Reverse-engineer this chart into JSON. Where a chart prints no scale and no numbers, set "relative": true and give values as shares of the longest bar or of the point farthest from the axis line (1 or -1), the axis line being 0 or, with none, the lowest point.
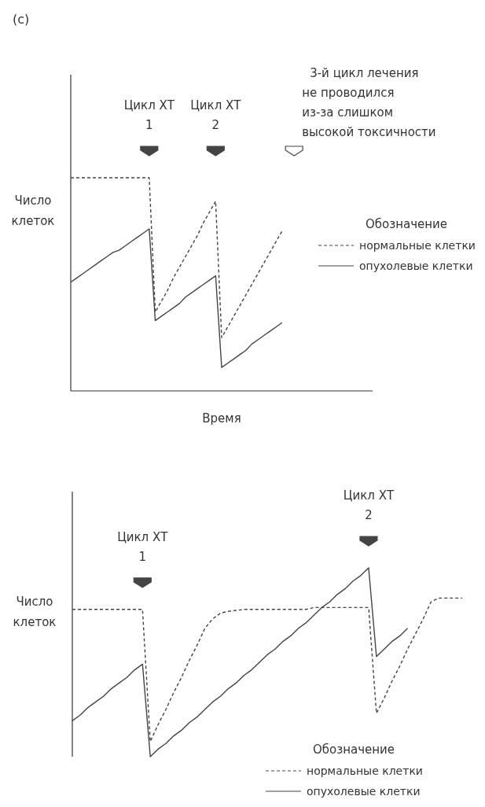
{
  "chart_data": [
    {
      "type": "line",
      "title": "(c)",
      "xlabel": "Время",
      "ylabel": "Число клеток",
      "legend_title": "Обозначение",
      "legend": "right",
      "relative": true,
      "categories": [
        null,
        null,
        null,
        null,
        null,
        null,
        null,
        null,
        null,
        null,
        null,
        null,
        null,
        null,
        null,
        null,
        null,
        null,
        null,
        null,
        null,
        null,
        null,
        null,
        null,
        null,
        null,
        null,
        null,
        null,
        null,
        null,
        null,
        null,
        null,
        null,
        null,
        null,
        null,
        null,
        null,
        null,
        null,
        null,
        null,
        null,
        null,
        null,
        null,
        null,
        null
      ],
      "annotations": [
        "Цикл ХТ\n1",
        "Цикл ХТ\n2",
        "3-й цикл лечения\nне проводился\nиз-за слишком\nвысокой токсичности"
      ],
      "series": [
        {
          "name": "нормальные клетки",
          "color": "#444444",
          "line_style": "dashed",
          "values": [
            1,
            1,
            1,
            1,
            1,
            1,
            1,
            1,
            1,
            1,
            1,
            1,
            1,
            1,
            0.37,
            0.42,
            0.47,
            0.53,
            0.58,
            0.63,
            0.68,
            0.73,
            0.79,
            0.84,
            0.89,
            0.25,
            0.3,
            0.35,
            0.4,
            0.45,
            0.5,
            0.55,
            0.6,
            0.65,
            0.7,
            0.75,
            null,
            null,
            null,
            null,
            null,
            null,
            null,
            null,
            null,
            null,
            null,
            null,
            null,
            null,
            null
          ]
        },
        {
          "name": "опухолевые клетки",
          "color": "#444444",
          "line_style": "solid",
          "values": [
            0.51,
            0.53,
            0.55,
            0.57,
            0.59,
            0.61,
            0.63,
            0.65,
            0.66,
            0.68,
            0.7,
            0.72,
            0.74,
            0.76,
            0.33,
            0.35,
            0.37,
            0.39,
            0.41,
            0.44,
            0.46,
            0.48,
            0.5,
            0.52,
            0.54,
            0.11,
            0.13,
            0.15,
            0.17,
            0.19,
            0.22,
            0.24,
            0.26,
            0.28,
            0.3,
            0.32,
            null,
            null,
            null,
            null,
            null,
            null,
            null,
            null,
            null,
            null,
            null,
            null,
            null,
            null,
            null
          ]
        }
      ]
    },
    {
      "type": "line",
      "ylabel": "Число клеток",
      "legend_title": "Обозначение",
      "legend": "bottom right",
      "relative": true,
      "categories": [
        null,
        null,
        null,
        null,
        null,
        null,
        null,
        null,
        null,
        null,
        null,
        null,
        null,
        null,
        null,
        null,
        null,
        null,
        null,
        null,
        null,
        null,
        null,
        null,
        null,
        null,
        null,
        null,
        null,
        null,
        null,
        null,
        null,
        null,
        null,
        null,
        null,
        null,
        null,
        null,
        null,
        null,
        null,
        null,
        null,
        null,
        null,
        null,
        null,
        null,
        null
      ],
      "annotations": [
        "Цикл ХТ\n1",
        "Цикл ХТ\n2"
      ],
      "series": [
        {
          "name": "нормальные клетки",
          "color": "#444444",
          "line_style": "dashed",
          "values": [
            0.78,
            0.78,
            0.78,
            0.78,
            0.78,
            0.78,
            0.78,
            0.78,
            0.78,
            0.78,
            0.08,
            0.17,
            0.25,
            0.34,
            0.42,
            0.51,
            0.59,
            0.68,
            0.73,
            0.76,
            0.77,
            0.775,
            0.78,
            0.78,
            0.78,
            0.78,
            0.78,
            0.78,
            0.78,
            0.78,
            0.78,
            0.79,
            0.79,
            0.79,
            0.79,
            0.79,
            0.79,
            0.79,
            0.79,
            0.23,
            0.31,
            0.4,
            0.48,
            0.57,
            0.65,
            0.73,
            0.82,
            0.84,
            0.84,
            0.84,
            0.84
          ]
        },
        {
          "name": "опухолевые клетки",
          "color": "#444444",
          "line_style": "solid",
          "values": [
            0.19,
            0.22,
            0.26,
            0.29,
            0.32,
            0.36,
            0.39,
            0.42,
            0.46,
            0.49,
            0,
            0.04,
            0.07,
            0.11,
            0.14,
            0.18,
            0.21,
            0.25,
            0.29,
            0.32,
            0.36,
            0.39,
            0.43,
            0.46,
            0.5,
            0.54,
            0.57,
            0.61,
            0.64,
            0.68,
            0.71,
            0.75,
            0.79,
            0.82,
            0.86,
            0.89,
            0.93,
            0.96,
            1,
            0.53,
            0.57,
            0.61,
            0.64,
            0.68,
            null,
            null,
            null,
            null,
            null,
            null,
            null
          ]
        }
      ]
    }
  ]
}
